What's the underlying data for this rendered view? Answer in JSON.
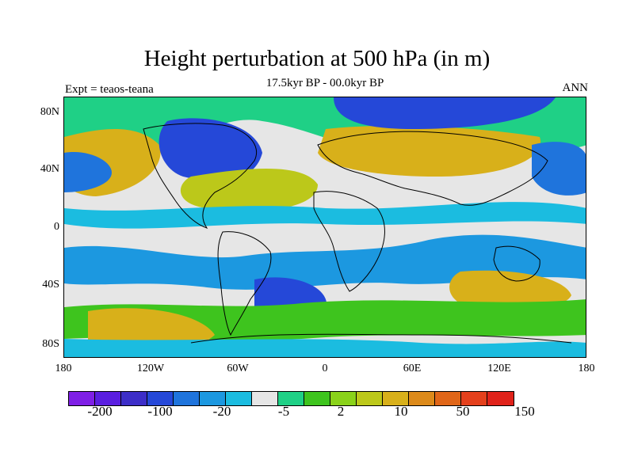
{
  "title": "Height perturbation at 500 hPa (in m)",
  "subtitle": "17.5kyr BP - 00.0kyr BP",
  "left_label": "Expt = teaos-teana",
  "right_label": "ANN",
  "y_axis_labels": [
    "80N",
    "40N",
    "0",
    "40S",
    "80S"
  ],
  "x_axis_labels": [
    "180",
    "120W",
    "60W",
    "0",
    "60E",
    "120E",
    "180"
  ],
  "colorbar": {
    "colors": [
      "#7f1fe6",
      "#5a1ee0",
      "#3d2ec8",
      "#2548d8",
      "#1f74dc",
      "#1c98e0",
      "#1bbce0",
      "#e6e6e6",
      "#1fd086",
      "#3ec41e",
      "#8ad21a",
      "#bcc81a",
      "#d8b01a",
      "#dc8a1a",
      "#e06618",
      "#e4401c",
      "#e0221a"
    ],
    "labels": [
      "-200",
      "-100",
      "-20",
      "-5",
      "2",
      "10",
      "50",
      "150"
    ]
  },
  "map_colors": {
    "ocean": "#e6e6e6",
    "deep_blue": "#2548d8",
    "mid_blue": "#1f74dc",
    "light_blue": "#1bbce0",
    "sky": "#1c98e0",
    "teal": "#1fd086",
    "green": "#3ec41e",
    "yellow_green": "#8ad21a",
    "olive": "#bcc81a",
    "mustard": "#d8b01a",
    "orange": "#dc8a1a"
  }
}
